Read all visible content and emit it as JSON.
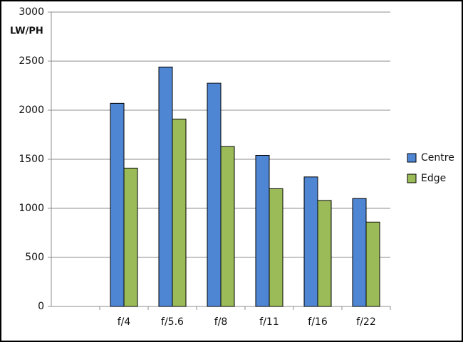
{
  "chart_data": {
    "type": "bar",
    "y_label": "LW/PH",
    "categories": [
      null,
      "f/4",
      "f/5.6",
      "f/8",
      "f/11",
      "f/16",
      "f/22"
    ],
    "series": [
      {
        "name": "Centre",
        "color": "#4f86d4",
        "values": [
          null,
          2070,
          2440,
          2275,
          1540,
          1320,
          1100
        ]
      },
      {
        "name": "Edge",
        "color": "#9bbb59",
        "values": [
          null,
          1410,
          1910,
          1630,
          1200,
          1080,
          860
        ]
      }
    ],
    "ylim": [
      0,
      3000
    ],
    "yticks": [
      0,
      500,
      1000,
      1500,
      2000,
      2500,
      3000
    ],
    "grid": true,
    "legend": "right"
  }
}
